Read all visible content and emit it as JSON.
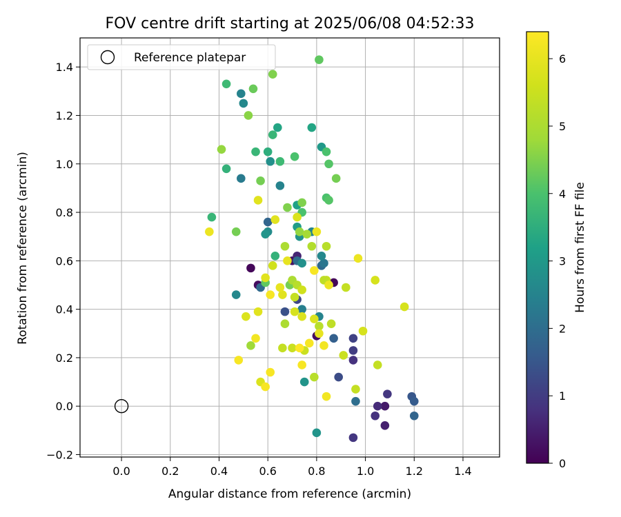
{
  "chart_data": {
    "type": "scatter",
    "title": "FOV centre drift starting at 2025/06/08 04:52:33",
    "xlabel": "Angular distance from reference (arcmin)",
    "ylabel": "Rotation from reference (arcmin)",
    "xlim": [
      -0.17,
      1.55
    ],
    "ylim": [
      -0.21,
      1.52
    ],
    "xticks": [
      0.0,
      0.2,
      0.4,
      0.6,
      0.8,
      1.0,
      1.2,
      1.4
    ],
    "xtick_labels": [
      "0.0",
      "0.2",
      "0.4",
      "0.6",
      "0.8",
      "1.0",
      "1.2",
      "1.4"
    ],
    "yticks": [
      -0.2,
      0.0,
      0.2,
      0.4,
      0.6,
      0.8,
      1.0,
      1.2,
      1.4
    ],
    "ytick_labels": [
      "−0.2",
      "0.0",
      "0.2",
      "0.4",
      "0.6",
      "0.8",
      "1.0",
      "1.2",
      "1.4"
    ],
    "grid": true,
    "legend": {
      "placement": "upper-left",
      "entries": [
        "Reference platepar"
      ]
    },
    "reference_point": {
      "x": 0.0,
      "y": 0.0
    },
    "colorbar": {
      "label": "Hours from first FF file",
      "range": [
        0,
        6.4
      ],
      "ticks": [
        0,
        1,
        2,
        3,
        4,
        5,
        6
      ],
      "tick_labels": [
        "0",
        "1",
        "2",
        "3",
        "4",
        "5",
        "6"
      ],
      "colormap": "viridis"
    },
    "points": [
      {
        "x": 0.53,
        "y": 0.57,
        "h": 0.1
      },
      {
        "x": 0.56,
        "y": 0.5,
        "h": 0.2
      },
      {
        "x": 0.7,
        "y": 0.6,
        "h": 0.3
      },
      {
        "x": 0.8,
        "y": 0.29,
        "h": 0.2
      },
      {
        "x": 0.87,
        "y": 0.51,
        "h": 0.1
      },
      {
        "x": 0.72,
        "y": 0.62,
        "h": 0.6
      },
      {
        "x": 1.08,
        "y": 0.0,
        "h": 0.4
      },
      {
        "x": 1.08,
        "y": -0.08,
        "h": 0.5
      },
      {
        "x": 1.05,
        "y": 0.0,
        "h": 0.7
      },
      {
        "x": 1.04,
        "y": -0.04,
        "h": 0.8
      },
      {
        "x": 1.09,
        "y": 0.05,
        "h": 0.9
      },
      {
        "x": 0.95,
        "y": -0.13,
        "h": 0.9
      },
      {
        "x": 0.95,
        "y": 0.19,
        "h": 0.8
      },
      {
        "x": 0.95,
        "y": 0.23,
        "h": 1.0
      },
      {
        "x": 0.95,
        "y": 0.28,
        "h": 1.1
      },
      {
        "x": 0.72,
        "y": 0.44,
        "h": 1.2
      },
      {
        "x": 0.67,
        "y": 0.39,
        "h": 1.4
      },
      {
        "x": 0.89,
        "y": 0.12,
        "h": 1.3
      },
      {
        "x": 1.19,
        "y": 0.04,
        "h": 1.5
      },
      {
        "x": 1.2,
        "y": 0.02,
        "h": 1.6
      },
      {
        "x": 1.2,
        "y": -0.04,
        "h": 1.8
      },
      {
        "x": 0.96,
        "y": 0.02,
        "h": 2.0
      },
      {
        "x": 0.87,
        "y": 0.28,
        "h": 1.7
      },
      {
        "x": 0.57,
        "y": 0.49,
        "h": 1.9
      },
      {
        "x": 0.6,
        "y": 0.76,
        "h": 1.8
      },
      {
        "x": 0.82,
        "y": 0.58,
        "h": 1.9
      },
      {
        "x": 0.83,
        "y": 0.59,
        "h": 2.2
      },
      {
        "x": 0.72,
        "y": 0.6,
        "h": 2.0
      },
      {
        "x": 0.47,
        "y": 0.46,
        "h": 2.6
      },
      {
        "x": 0.49,
        "y": 0.94,
        "h": 2.3
      },
      {
        "x": 0.5,
        "y": 1.25,
        "h": 2.6
      },
      {
        "x": 0.49,
        "y": 1.29,
        "h": 2.5
      },
      {
        "x": 0.6,
        "y": 0.72,
        "h": 2.7
      },
      {
        "x": 0.59,
        "y": 0.71,
        "h": 2.9
      },
      {
        "x": 0.61,
        "y": 1.01,
        "h": 2.8
      },
      {
        "x": 0.64,
        "y": 1.15,
        "h": 3.3
      },
      {
        "x": 0.65,
        "y": 0.91,
        "h": 2.5
      },
      {
        "x": 0.74,
        "y": 0.4,
        "h": 2.4
      },
      {
        "x": 0.74,
        "y": 0.59,
        "h": 2.8
      },
      {
        "x": 0.81,
        "y": 0.37,
        "h": 2.5
      },
      {
        "x": 0.82,
        "y": 0.62,
        "h": 2.6
      },
      {
        "x": 0.78,
        "y": 0.72,
        "h": 2.5
      },
      {
        "x": 0.73,
        "y": 0.7,
        "h": 2.9
      },
      {
        "x": 0.72,
        "y": 0.74,
        "h": 3.1
      },
      {
        "x": 0.75,
        "y": 0.1,
        "h": 2.9
      },
      {
        "x": 0.8,
        "y": -0.11,
        "h": 2.9
      },
      {
        "x": 0.82,
        "y": 1.07,
        "h": 3.0
      },
      {
        "x": 0.78,
        "y": 1.15,
        "h": 3.3
      },
      {
        "x": 0.72,
        "y": 0.83,
        "h": 3.2
      },
      {
        "x": 0.6,
        "y": 1.05,
        "h": 3.5
      },
      {
        "x": 0.62,
        "y": 1.12,
        "h": 3.7
      },
      {
        "x": 0.55,
        "y": 1.05,
        "h": 3.7
      },
      {
        "x": 0.43,
        "y": 1.33,
        "h": 3.8
      },
      {
        "x": 0.43,
        "y": 0.98,
        "h": 3.6
      },
      {
        "x": 0.37,
        "y": 0.78,
        "h": 3.7
      },
      {
        "x": 0.65,
        "y": 1.01,
        "h": 3.8
      },
      {
        "x": 0.63,
        "y": 0.62,
        "h": 3.6
      },
      {
        "x": 0.71,
        "y": 1.03,
        "h": 4.0
      },
      {
        "x": 0.74,
        "y": 0.8,
        "h": 4.0
      },
      {
        "x": 0.84,
        "y": 0.86,
        "h": 4.0
      },
      {
        "x": 0.85,
        "y": 0.85,
        "h": 4.1
      },
      {
        "x": 0.84,
        "y": 1.05,
        "h": 4.0
      },
      {
        "x": 0.85,
        "y": 1.0,
        "h": 4.1
      },
      {
        "x": 0.81,
        "y": 1.43,
        "h": 4.2
      },
      {
        "x": 0.88,
        "y": 0.94,
        "h": 4.4
      },
      {
        "x": 0.57,
        "y": 0.93,
        "h": 4.4
      },
      {
        "x": 0.54,
        "y": 1.31,
        "h": 4.3
      },
      {
        "x": 0.62,
        "y": 1.37,
        "h": 4.5
      },
      {
        "x": 0.52,
        "y": 1.2,
        "h": 4.6
      },
      {
        "x": 0.47,
        "y": 0.72,
        "h": 4.4
      },
      {
        "x": 0.59,
        "y": 0.51,
        "h": 4.2
      },
      {
        "x": 0.69,
        "y": 0.5,
        "h": 4.4
      },
      {
        "x": 0.74,
        "y": 0.84,
        "h": 4.5
      },
      {
        "x": 0.68,
        "y": 0.82,
        "h": 4.5
      },
      {
        "x": 0.7,
        "y": 0.52,
        "h": 5.0
      },
      {
        "x": 0.41,
        "y": 1.06,
        "h": 4.7
      },
      {
        "x": 0.53,
        "y": 0.25,
        "h": 4.8
      },
      {
        "x": 0.73,
        "y": 0.72,
        "h": 4.7
      },
      {
        "x": 0.67,
        "y": 0.66,
        "h": 5.0
      },
      {
        "x": 0.67,
        "y": 0.34,
        "h": 5.0
      },
      {
        "x": 0.72,
        "y": 0.5,
        "h": 5.2
      },
      {
        "x": 0.76,
        "y": 0.71,
        "h": 4.9
      },
      {
        "x": 0.78,
        "y": 0.66,
        "h": 5.1
      },
      {
        "x": 0.84,
        "y": 0.66,
        "h": 5.2
      },
      {
        "x": 0.81,
        "y": 0.33,
        "h": 5.2
      },
      {
        "x": 0.86,
        "y": 0.34,
        "h": 5.3
      },
      {
        "x": 0.79,
        "y": 0.12,
        "h": 5.2
      },
      {
        "x": 0.66,
        "y": 0.24,
        "h": 5.4
      },
      {
        "x": 0.7,
        "y": 0.24,
        "h": 5.5
      },
      {
        "x": 0.71,
        "y": 0.45,
        "h": 5.4
      },
      {
        "x": 0.75,
        "y": 0.23,
        "h": 5.5
      },
      {
        "x": 0.84,
        "y": 0.52,
        "h": 5.4
      },
      {
        "x": 0.83,
        "y": 0.52,
        "h": 5.3
      },
      {
        "x": 0.92,
        "y": 0.49,
        "h": 5.4
      },
      {
        "x": 0.91,
        "y": 0.21,
        "h": 5.5
      },
      {
        "x": 0.96,
        "y": 0.07,
        "h": 5.4
      },
      {
        "x": 1.05,
        "y": 0.17,
        "h": 5.4
      },
      {
        "x": 1.04,
        "y": 0.52,
        "h": 5.7
      },
      {
        "x": 1.16,
        "y": 0.41,
        "h": 5.7
      },
      {
        "x": 0.99,
        "y": 0.31,
        "h": 5.7
      },
      {
        "x": 0.74,
        "y": 0.48,
        "h": 5.6
      },
      {
        "x": 0.56,
        "y": 0.85,
        "h": 5.9
      },
      {
        "x": 0.56,
        "y": 0.39,
        "h": 5.9
      },
      {
        "x": 0.59,
        "y": 0.53,
        "h": 5.9
      },
      {
        "x": 0.57,
        "y": 0.1,
        "h": 5.8
      },
      {
        "x": 0.63,
        "y": 0.77,
        "h": 5.9
      },
      {
        "x": 0.62,
        "y": 0.58,
        "h": 5.6
      },
      {
        "x": 0.51,
        "y": 0.37,
        "h": 5.8
      },
      {
        "x": 0.71,
        "y": 0.39,
        "h": 5.7
      },
      {
        "x": 0.74,
        "y": 0.37,
        "h": 5.8
      },
      {
        "x": 0.79,
        "y": 0.36,
        "h": 5.8
      },
      {
        "x": 0.72,
        "y": 0.78,
        "h": 5.8
      },
      {
        "x": 0.68,
        "y": 0.6,
        "h": 6.0
      },
      {
        "x": 0.66,
        "y": 0.46,
        "h": 5.9
      },
      {
        "x": 0.65,
        "y": 0.49,
        "h": 6.0
      },
      {
        "x": 0.81,
        "y": 0.3,
        "h": 6.0
      },
      {
        "x": 0.79,
        "y": 0.56,
        "h": 6.3
      },
      {
        "x": 0.36,
        "y": 0.72,
        "h": 6.1
      },
      {
        "x": 0.55,
        "y": 0.28,
        "h": 6.2
      },
      {
        "x": 0.48,
        "y": 0.19,
        "h": 6.3
      },
      {
        "x": 0.59,
        "y": 0.08,
        "h": 6.3
      },
      {
        "x": 0.61,
        "y": 0.14,
        "h": 6.3
      },
      {
        "x": 0.61,
        "y": 0.46,
        "h": 6.3
      },
      {
        "x": 0.73,
        "y": 0.24,
        "h": 6.4
      },
      {
        "x": 0.77,
        "y": 0.26,
        "h": 6.3
      },
      {
        "x": 0.74,
        "y": 0.17,
        "h": 6.3
      },
      {
        "x": 0.8,
        "y": 0.72,
        "h": 6.1
      },
      {
        "x": 0.83,
        "y": 0.25,
        "h": 6.2
      },
      {
        "x": 0.84,
        "y": 0.04,
        "h": 6.2
      },
      {
        "x": 0.85,
        "y": 0.5,
        "h": 6.1
      },
      {
        "x": 0.97,
        "y": 0.61,
        "h": 6.1
      }
    ]
  }
}
